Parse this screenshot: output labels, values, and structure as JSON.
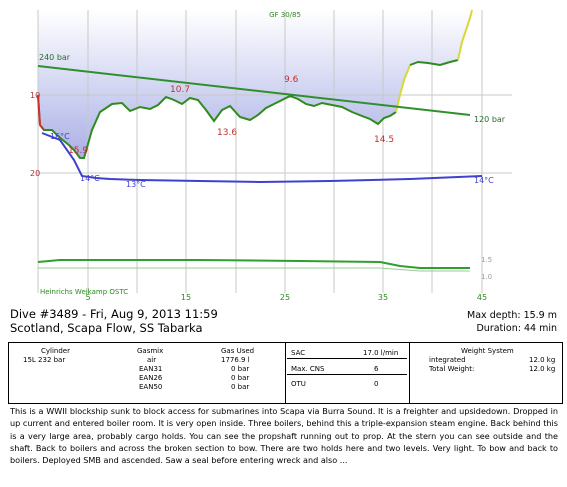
{
  "profile": {
    "gf": "GF 30/85",
    "pressure_start": "240 bar",
    "pressure_end": "120 bar",
    "depth_labels": [
      "10",
      "20"
    ],
    "temps": [
      "16°C",
      "14°C",
      "13°C",
      "14°C"
    ],
    "depth_annotations": [
      "10.7",
      "9.6",
      "15.9",
      "13.6",
      "14.5"
    ],
    "time_ticks": [
      "5",
      "15",
      "25",
      "35",
      "45"
    ],
    "gas_pressure_labels": [
      "1.5",
      "1.0"
    ],
    "computer": "Heinrichs Weikamp OSTC"
  },
  "header": {
    "dive_line": "Dive #3489 - Fri, Aug 9, 2013   11:59",
    "location": "Scotland, Scapa Flow, SS Tabarka",
    "max_depth": "Max depth: 15.9 m",
    "duration": "Duration: 44 min"
  },
  "cylinders": {
    "col_cylinder": "Cylinder",
    "col_gasmix": "Gasmix",
    "col_gasused": "Gas Used",
    "rows": [
      {
        "cylinder": "15L 232 bar",
        "gasmix": "air",
        "used": "1776.9 l"
      },
      {
        "cylinder": "",
        "gasmix": "EAN31",
        "used": "0 bar"
      },
      {
        "cylinder": "",
        "gasmix": "EAN26",
        "used": "0 bar"
      },
      {
        "cylinder": "",
        "gasmix": "EAN50",
        "used": "0 bar"
      }
    ]
  },
  "stats": {
    "sac_label": "SAC",
    "sac_value": "17.0 l/min",
    "cns_label": "Max. CNS",
    "cns_value": "6",
    "otu_label": "OTU",
    "otu_value": "0"
  },
  "weights": {
    "title": "Weight System",
    "integrated_label": "integrated",
    "integrated_value": "12.0 kg",
    "total_label": "Total Weight:",
    "total_value": "12.0 kg"
  },
  "notes": "This is a WWII blockship sunk to block access for submarines into Scapa via Burra Sound. It is a freighter and upsidedown. Dropped in up current and entered boiler room. It is very open inside. Three boilers, behind this a triple-expansion steam engine. Back behind this is a very large area, probably cargo holds. You can see the propshaft running out to prop. At the stern you can see outside and the shaft. Back to boilers and across the broken section to bow. There are two holds here and two levels. Very light. To bow and back to boilers. Deployed SMB and ascended. Saw a seal before entering wreck and also ..."
}
